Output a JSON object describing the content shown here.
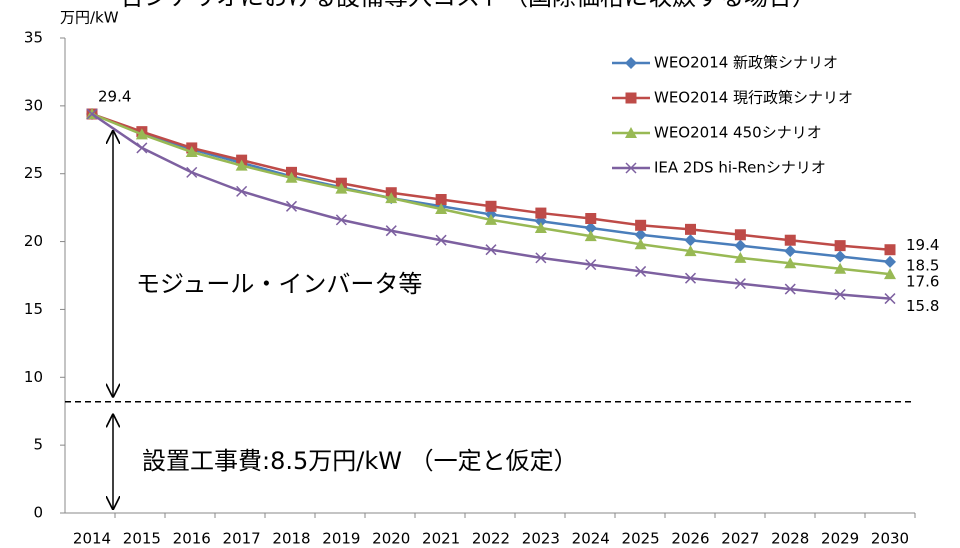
{
  "chart_data": {
    "type": "line",
    "title": "合シナリオにおける設備導入コスト（国際価格に収斂する場合）",
    "ylabel": "万円/kW",
    "categories": [
      "2014",
      "2015",
      "2016",
      "2017",
      "2018",
      "2019",
      "2020",
      "2021",
      "2022",
      "2023",
      "2024",
      "2025",
      "2026",
      "2027",
      "2028",
      "2029",
      "2030"
    ],
    "series": [
      {
        "name": "WEO2014 新政策シナリオ",
        "color": "#4a7ebb",
        "marker": "diamond",
        "values": [
          29.4,
          28.0,
          26.8,
          25.8,
          24.8,
          24.0,
          23.2,
          22.6,
          22.0,
          21.5,
          21.0,
          20.5,
          20.1,
          19.7,
          19.3,
          18.9,
          18.5
        ]
      },
      {
        "name": "WEO2014 現行政策シナリオ",
        "color": "#be4b48",
        "marker": "square",
        "values": [
          29.4,
          28.1,
          26.9,
          26.0,
          25.1,
          24.3,
          23.6,
          23.1,
          22.6,
          22.1,
          21.7,
          21.2,
          20.9,
          20.5,
          20.1,
          19.7,
          19.4
        ]
      },
      {
        "name": "WEO2014 450シナリオ",
        "color": "#98b954",
        "marker": "triangle",
        "values": [
          29.4,
          27.9,
          26.6,
          25.6,
          24.7,
          23.9,
          23.2,
          22.4,
          21.6,
          21.0,
          20.4,
          19.8,
          19.3,
          18.8,
          18.4,
          18.0,
          17.6
        ]
      },
      {
        "name": "IEA  2DS hi-Renシナリオ",
        "color": "#7d60a0",
        "marker": "x",
        "values": [
          29.4,
          26.9,
          25.1,
          23.7,
          22.6,
          21.6,
          20.8,
          20.1,
          19.4,
          18.8,
          18.3,
          17.8,
          17.3,
          16.9,
          16.5,
          16.1,
          15.8
        ]
      }
    ],
    "ylim": [
      0,
      35
    ],
    "yticks": [
      0,
      5,
      10,
      15,
      20,
      25,
      30,
      35
    ],
    "hline": 8.2,
    "annotations": [
      "モジュール・インバータ等",
      "設置工事費:8.5万円/kW （一定と仮定）"
    ],
    "legend": "upper right"
  }
}
